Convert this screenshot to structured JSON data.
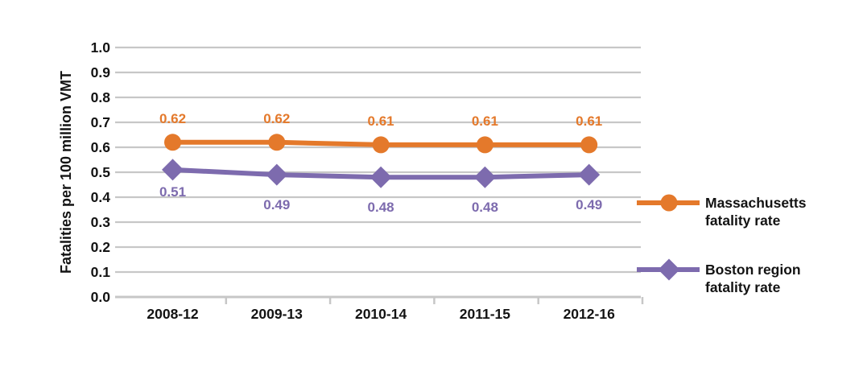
{
  "chart_data": {
    "type": "line",
    "title": "",
    "ylabel": "Fatalities per 100 million VMT",
    "xlabel": "",
    "ylim": [
      0.0,
      1.0
    ],
    "ytick_step": 0.1,
    "ytick_labels": [
      "0.0",
      "0.1",
      "0.2",
      "0.3",
      "0.4",
      "0.5",
      "0.6",
      "0.7",
      "0.8",
      "0.9",
      "1.0"
    ],
    "categories": [
      "2008-12",
      "2009-13",
      "2010-14",
      "2011-15",
      "2012-16"
    ],
    "series": [
      {
        "name": "Massachusetts fatality rate",
        "legend_line1": "Massachusetts",
        "legend_line2": "fatality rate",
        "marker": "circle",
        "color": "#E4792B",
        "values": [
          0.62,
          0.62,
          0.61,
          0.61,
          0.61
        ],
        "labels": [
          "0.62",
          "0.62",
          "0.61",
          "0.61",
          "0.61"
        ]
      },
      {
        "name": "Boston region fatality rate",
        "legend_line1": "Boston region",
        "legend_line2": "fatality rate",
        "marker": "diamond",
        "color": "#7D6BAE",
        "values": [
          0.51,
          0.49,
          0.48,
          0.48,
          0.49
        ],
        "labels": [
          "0.51",
          "0.49",
          "0.48",
          "0.48",
          "0.49"
        ]
      }
    ],
    "grid": "horizontal",
    "legend_position": "right",
    "colors": {
      "grid": "#C7C7C7",
      "axis_text": "#131313",
      "background": "#FFFFFF"
    }
  }
}
